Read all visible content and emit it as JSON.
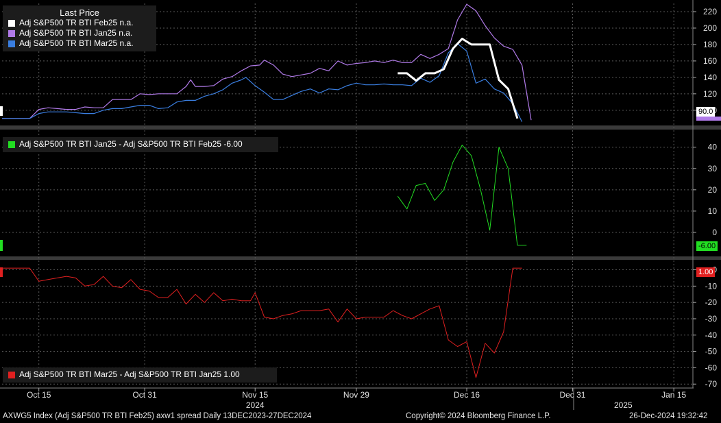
{
  "colors": {
    "background": "#000000",
    "grid": "#5a5a5a",
    "feb25": "#ffffff",
    "jan25": "#b07ae8",
    "mar25": "#3a7ee0",
    "spread1": "#22dd22",
    "spread2": "#e02020"
  },
  "legend_top": {
    "header": "Last Price",
    "items": [
      {
        "label": "Adj S&P500 TR BTI Feb25 n.a.",
        "color": "#ffffff"
      },
      {
        "label": "Adj S&P500 TR BTI Jan25 n.a.",
        "color": "#b07ae8"
      },
      {
        "label": "Adj S&P500 TR BTI Mar25 n.a.",
        "color": "#3a7ee0"
      }
    ]
  },
  "legend_mid": {
    "label": "Adj S&P500 TR BTI Jan25 - Adj S&P500 TR BTI Feb25 -6.00",
    "color": "#22dd22"
  },
  "legend_bot": {
    "label": "Adj S&P500 TR BTI Mar25 - Adj S&P500 TR BTI Jan25 1.00",
    "color": "#e02020"
  },
  "tags": {
    "top": "90.0",
    "mid": "-6.00",
    "bot": "1.00"
  },
  "footer": {
    "left": "AXWG5 Index (Adj S&P500 TR BTI Feb25) axw1 spread  Daily 13DEC2023-27DEC2024",
    "center": "Copyright© 2024 Bloomberg Finance L.P.",
    "right": "26-Dec-2024 19:32:42"
  },
  "chart_data": [
    {
      "type": "line",
      "panel": "top",
      "ylim": [
        84,
        230
      ],
      "yticks": [
        100,
        120,
        140,
        160,
        180,
        200,
        220
      ],
      "series": [
        {
          "name": "Adj S&P500 TR BTI Jan25",
          "color": "#b07ae8",
          "width": 1.2,
          "points": [
            [
              0,
              90
            ],
            [
              2,
              90
            ],
            [
              4,
              90
            ],
            [
              6,
              90
            ],
            [
              8,
              101
            ],
            [
              10,
              103
            ],
            [
              12,
              102
            ],
            [
              14,
              101
            ],
            [
              16,
              101
            ],
            [
              18,
              104
            ],
            [
              20,
              103
            ],
            [
              22,
              103
            ],
            [
              24,
              113
            ],
            [
              26,
              113
            ],
            [
              28,
              113
            ],
            [
              30,
              120
            ],
            [
              32,
              119
            ],
            [
              34,
              120
            ],
            [
              36,
              120
            ],
            [
              38,
              120
            ],
            [
              40,
              129
            ],
            [
              41,
              137
            ],
            [
              42,
              129
            ],
            [
              44,
              129
            ],
            [
              46,
              130
            ],
            [
              48,
              138
            ],
            [
              50,
              141
            ],
            [
              52,
              148
            ],
            [
              54,
              154
            ],
            [
              56,
              155
            ],
            [
              57,
              161
            ],
            [
              59,
              155
            ],
            [
              61,
              144
            ],
            [
              63,
              141
            ],
            [
              65,
              143
            ],
            [
              67,
              145
            ],
            [
              69,
              151
            ],
            [
              71,
              148
            ],
            [
              73,
              160
            ],
            [
              75,
              155
            ],
            [
              77,
              157
            ],
            [
              79,
              158
            ],
            [
              81,
              160
            ],
            [
              83,
              158
            ],
            [
              85,
              161
            ],
            [
              87,
              158
            ],
            [
              89,
              158
            ],
            [
              91,
              168
            ],
            [
              93,
              163
            ],
            [
              95,
              168
            ],
            [
              97,
              175
            ],
            [
              99,
              210
            ],
            [
              101,
              229
            ],
            [
              103,
              221
            ],
            [
              105,
              203
            ],
            [
              107,
              188
            ],
            [
              109,
              178
            ],
            [
              111,
              174
            ],
            [
              113,
              155
            ],
            [
              115,
              88
            ]
          ]
        },
        {
          "name": "Adj S&P500 TR BTI Mar25",
          "color": "#3a7ee0",
          "width": 1.2,
          "points": [
            [
              0,
              90
            ],
            [
              2,
              90
            ],
            [
              4,
              90
            ],
            [
              6,
              90
            ],
            [
              8,
              96
            ],
            [
              10,
              98
            ],
            [
              12,
              98
            ],
            [
              14,
              98
            ],
            [
              16,
              97
            ],
            [
              18,
              96
            ],
            [
              20,
              96
            ],
            [
              22,
              100
            ],
            [
              24,
              102
            ],
            [
              26,
              102
            ],
            [
              28,
              104
            ],
            [
              30,
              106
            ],
            [
              32,
              106
            ],
            [
              34,
              102
            ],
            [
              36,
              103
            ],
            [
              38,
              110
            ],
            [
              40,
              112
            ],
            [
              42,
              112
            ],
            [
              44,
              117
            ],
            [
              46,
              120
            ],
            [
              48,
              125
            ],
            [
              50,
              133
            ],
            [
              52,
              137
            ],
            [
              53,
              140
            ],
            [
              55,
              130
            ],
            [
              57,
              122
            ],
            [
              59,
              113
            ],
            [
              61,
              113
            ],
            [
              63,
              118
            ],
            [
              65,
              123
            ],
            [
              67,
              126
            ],
            [
              69,
              121
            ],
            [
              71,
              126
            ],
            [
              73,
              125
            ],
            [
              75,
              130
            ],
            [
              77,
              133
            ],
            [
              79,
              131
            ],
            [
              81,
              131
            ],
            [
              83,
              132
            ],
            [
              85,
              131
            ],
            [
              87,
              131
            ],
            [
              89,
              130
            ],
            [
              91,
              139
            ],
            [
              93,
              134
            ],
            [
              95,
              142
            ],
            [
              97,
              170
            ],
            [
              99,
              181
            ],
            [
              101,
              172
            ],
            [
              103,
              133
            ],
            [
              105,
              138
            ],
            [
              107,
              126
            ],
            [
              109,
              121
            ],
            [
              111,
              108
            ],
            [
              113,
              86
            ]
          ]
        },
        {
          "name": "Adj S&P500 TR BTI Feb25",
          "color": "#ffffff",
          "width": 3,
          "points": [
            [
              86,
              145
            ],
            [
              88,
              145
            ],
            [
              90,
              136
            ],
            [
              92,
              145
            ],
            [
              94,
              145
            ],
            [
              96,
              150
            ],
            [
              98,
              175
            ],
            [
              100,
              187
            ],
            [
              102,
              180
            ],
            [
              104,
              180
            ],
            [
              106,
              180
            ],
            [
              108,
              137
            ],
            [
              110,
              126
            ],
            [
              112,
              90
            ]
          ]
        }
      ]
    },
    {
      "type": "line",
      "panel": "middle",
      "ylim": [
        -10,
        47
      ],
      "yticks": [
        0,
        10,
        20,
        30,
        40
      ],
      "series": [
        {
          "name": "Adj S&P500 TR BTI Jan25 - Adj S&P500 TR BTI Feb25",
          "color": "#22dd22",
          "width": 1,
          "points": [
            [
              86,
              17
            ],
            [
              88,
              11
            ],
            [
              90,
              22
            ],
            [
              92,
              23
            ],
            [
              94,
              15
            ],
            [
              96,
              20
            ],
            [
              98,
              33
            ],
            [
              100,
              41
            ],
            [
              102,
              36
            ],
            [
              104,
              20
            ],
            [
              106,
              1
            ],
            [
              108,
              40
            ],
            [
              110,
              30
            ],
            [
              112,
              -6
            ],
            [
              114,
              -6
            ]
          ]
        }
      ]
    },
    {
      "type": "line",
      "panel": "bottom",
      "ylim": [
        -72,
        4
      ],
      "yticks": [
        -70,
        -60,
        -50,
        -40,
        -30,
        -20,
        -10,
        0
      ],
      "series": [
        {
          "name": "Adj S&P500 TR BTI Mar25 - Adj S&P500 TR BTI Jan25",
          "color": "#e02020",
          "width": 1,
          "points": [
            [
              0,
              1
            ],
            [
              2,
              1
            ],
            [
              4,
              1
            ],
            [
              6,
              1
            ],
            [
              8,
              -7
            ],
            [
              10,
              -6
            ],
            [
              12,
              -5
            ],
            [
              14,
              -4
            ],
            [
              16,
              -5
            ],
            [
              18,
              -10
            ],
            [
              20,
              -9
            ],
            [
              22,
              -4
            ],
            [
              24,
              -10
            ],
            [
              26,
              -11
            ],
            [
              28,
              -6
            ],
            [
              30,
              -12
            ],
            [
              32,
              -13
            ],
            [
              34,
              -17
            ],
            [
              36,
              -17
            ],
            [
              38,
              -12
            ],
            [
              40,
              -21
            ],
            [
              42,
              -15
            ],
            [
              44,
              -20
            ],
            [
              46,
              -14
            ],
            [
              48,
              -19
            ],
            [
              50,
              -18
            ],
            [
              52,
              -19
            ],
            [
              54,
              -19
            ],
            [
              55,
              -14
            ],
            [
              57,
              -29
            ],
            [
              59,
              -30
            ],
            [
              61,
              -28
            ],
            [
              63,
              -27
            ],
            [
              65,
              -25
            ],
            [
              67,
              -25
            ],
            [
              69,
              -25
            ],
            [
              71,
              -24
            ],
            [
              73,
              -32
            ],
            [
              75,
              -24
            ],
            [
              77,
              -30
            ],
            [
              79,
              -29
            ],
            [
              81,
              -29
            ],
            [
              83,
              -29
            ],
            [
              85,
              -25
            ],
            [
              87,
              -28
            ],
            [
              89,
              -30
            ],
            [
              91,
              -27
            ],
            [
              93,
              -24
            ],
            [
              95,
              -22
            ],
            [
              97,
              -43
            ],
            [
              99,
              -47
            ],
            [
              101,
              -44
            ],
            [
              103,
              -66
            ],
            [
              105,
              -45
            ],
            [
              107,
              -51
            ],
            [
              109,
              -38
            ],
            [
              111,
              1
            ],
            [
              113,
              1
            ]
          ]
        }
      ]
    }
  ],
  "x_axis": {
    "labels": [
      {
        "text": "Oct 15",
        "pos": 8
      },
      {
        "text": "Oct 31",
        "pos": 31
      },
      {
        "text": "Nov 15",
        "pos": 55
      },
      {
        "text": "Nov 29",
        "pos": 77
      },
      {
        "text": "Dec 16",
        "pos": 101
      },
      {
        "text": "Dec 31",
        "pos": 124
      },
      {
        "text": "Jan 15",
        "pos": 146
      }
    ],
    "years": [
      {
        "text": "2024",
        "pos": 55
      },
      {
        "text": "2025",
        "pos": 135
      }
    ]
  }
}
